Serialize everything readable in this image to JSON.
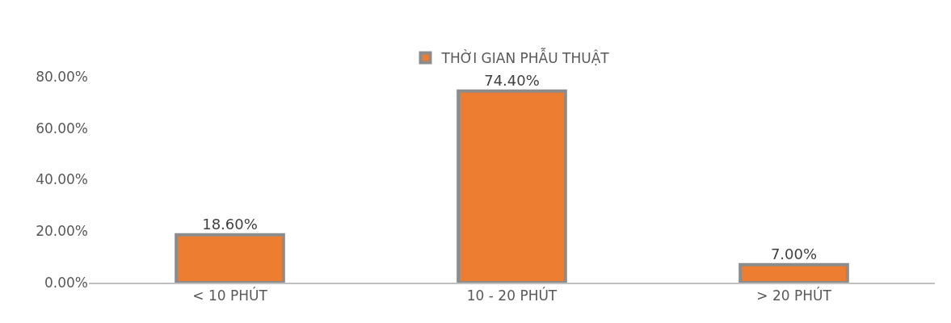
{
  "chart_data": {
    "type": "bar",
    "categories": [
      "< 10 PHÚT",
      "10 - 20 PHÚT",
      "> 20 PHÚT"
    ],
    "series": [
      {
        "name": "THỜI GIAN PHẪU THUẬT",
        "color": "#ed7d31",
        "values": [
          18.6,
          74.4,
          7.0
        ],
        "value_labels": [
          "18.60%",
          "74.40%",
          "7.00%"
        ]
      }
    ],
    "ylim": [
      0,
      80
    ],
    "yticks": [
      {
        "value": 0,
        "label": "0.00%"
      },
      {
        "value": 20,
        "label": "20.00%"
      },
      {
        "value": 40,
        "label": "40.00%"
      },
      {
        "value": 60,
        "label": "60.00%"
      },
      {
        "value": 80,
        "label": "80.00%"
      }
    ],
    "legend": "top"
  }
}
